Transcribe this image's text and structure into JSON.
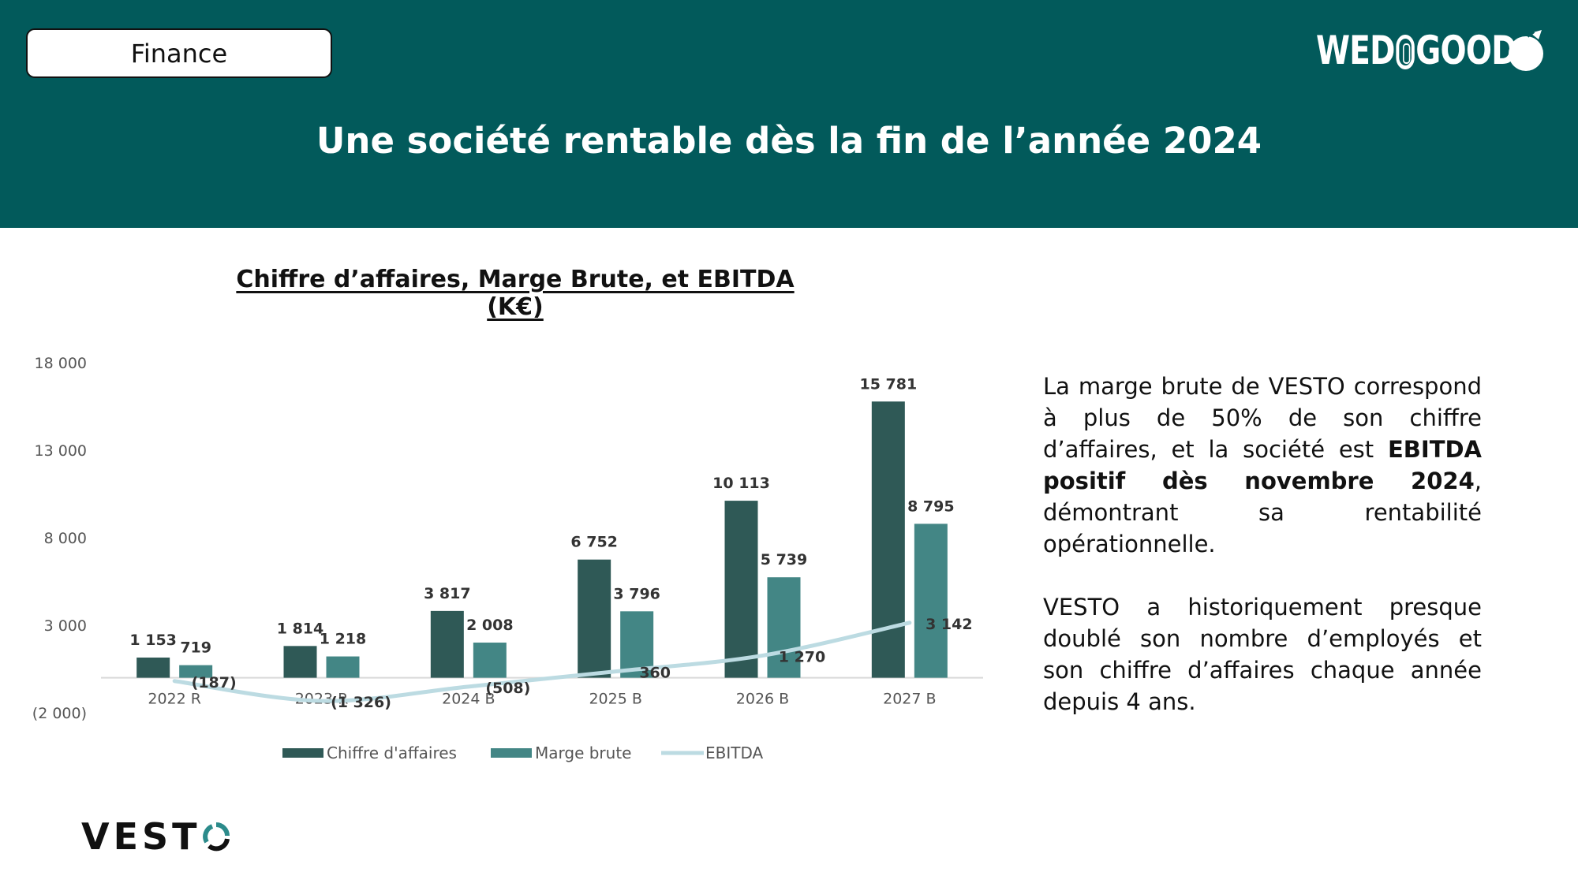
{
  "header": {
    "section_label": "Finance",
    "brand": {
      "part1": "WED",
      "part2": "GOOD"
    },
    "title": "Une société rentable dès la fin de l’année 2024"
  },
  "colors": {
    "header_bg": "#025a5b",
    "ca": "#2f5956",
    "marge": "#438685",
    "ebitda": "#bcdbe2",
    "vesto_accent": "#2c8b8b"
  },
  "icons": {
    "brand_mark": "apple-icon",
    "vesto_mark": "circular-arrows-icon"
  },
  "chart_data": {
    "type": "bar",
    "title": "Chiffre d’affaires, Marge Brute, et EBITDA (K€)",
    "categories": [
      "2022 R",
      "2023 R",
      "2024 B",
      "2025 B",
      "2026 B",
      "2027 B"
    ],
    "series": [
      {
        "name": "Chiffre d'affaires",
        "type": "bar",
        "values": [
          1153,
          1814,
          3817,
          6752,
          10113,
          15781
        ],
        "labels": [
          "1 153",
          "1 814",
          "3 817",
          "6 752",
          "10 113",
          "15 781"
        ]
      },
      {
        "name": "Marge brute",
        "type": "bar",
        "values": [
          719,
          1218,
          2008,
          3796,
          5739,
          8795
        ],
        "labels": [
          "719",
          "1 218",
          "2 008",
          "3 796",
          "5 739",
          "8 795"
        ]
      },
      {
        "name": "EBITDA",
        "type": "line",
        "values": [
          -187,
          -1326,
          -508,
          360,
          1270,
          3142
        ],
        "labels": [
          "(187)",
          "(1 326)",
          "(508)",
          "360",
          "1 270",
          "3 142"
        ]
      }
    ],
    "yticks": [
      18000,
      13000,
      8000,
      3000,
      -2000
    ],
    "ytick_labels": [
      "18 000",
      "13 000",
      "8 000",
      "3 000",
      "(2 000)"
    ],
    "ylim": [
      -2000,
      18000
    ],
    "legend": "bottom",
    "grid": false
  },
  "text": {
    "p1_a": "La marge brute de VESTO correspond à plus de 50% de son chiffre d’affaires, et la société est ",
    "p1_bold": "EBITDA positif dès novembre 2024",
    "p1_b": ", démontrant sa rentabilité opérationnelle.",
    "p2": "VESTO a historiquement presque doublé son nombre d’employés et son chiffre d’affaires chaque année depuis 4 ans."
  },
  "footer": {
    "logo_text": "VEST",
    "logo_o": "O"
  }
}
